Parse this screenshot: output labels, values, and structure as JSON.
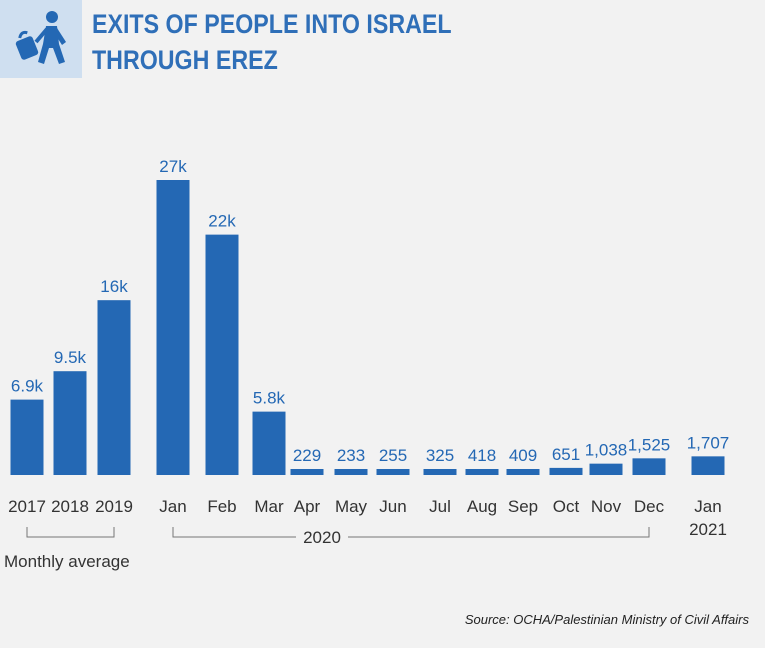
{
  "header": {
    "title_line1": "EXITS OF PEOPLE INTO ISRAEL",
    "title_line2": "THROUGH EREZ",
    "icon": "person-with-bag-icon"
  },
  "colors": {
    "bar": "#2468b4",
    "label": "#2468b4",
    "axis_text": "#333333",
    "bracket": "#777777",
    "background": "#f2f2f2",
    "icon_box": "#cfdff0"
  },
  "chart_data": {
    "type": "bar",
    "title": "EXITS OF PEOPLE INTO ISRAEL THROUGH EREZ",
    "categories": [
      "2017",
      "2018",
      "2019",
      "Jan",
      "Feb",
      "Mar",
      "Apr",
      "May",
      "Jun",
      "Jul",
      "Aug",
      "Sep",
      "Oct",
      "Nov",
      "Dec",
      "Jan"
    ],
    "values": [
      6900,
      9500,
      16000,
      27000,
      22000,
      5800,
      229,
      233,
      255,
      325,
      418,
      409,
      651,
      1038,
      1525,
      1707
    ],
    "value_labels": [
      "6.9k",
      "9.5k",
      "16k",
      "27k",
      "22k",
      "5.8k",
      "229",
      "233",
      "255",
      "325",
      "418",
      "409",
      "651",
      "1,038",
      "1,525",
      "1,707"
    ],
    "category_sublabels": [
      "",
      "",
      "",
      "",
      "",
      "",
      "",
      "",
      "",
      "",
      "",
      "",
      "",
      "",
      "",
      "2021"
    ],
    "groups": [
      {
        "label": "Monthly average",
        "from": 0,
        "to": 2
      },
      {
        "label": "2020",
        "from": 3,
        "to": 14
      }
    ],
    "ylim": [
      0,
      27000
    ],
    "grid": false,
    "xlabel": "",
    "ylabel": ""
  },
  "footer": {
    "source": "Source: OCHA/Palestinian Ministry of Civil Affairs"
  }
}
